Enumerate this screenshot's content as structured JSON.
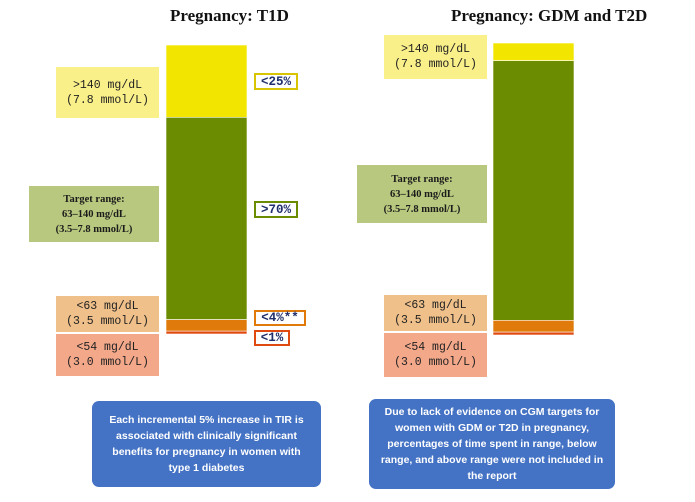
{
  "chart_data": [
    {
      "type": "stacked-bar",
      "title": "Pregnancy: T1D",
      "segments_bottom_to_top": [
        {
          "name": "<54 mg/dL",
          "color": "#e04a10",
          "value": 1
        },
        {
          "name": "<63 mg/dL",
          "color": "#e07a0a",
          "value": 4
        },
        {
          "name": "Target range",
          "color": "#6b8c00",
          "value": 70
        },
        {
          "name": ">140 mg/dL",
          "color": "#f2e600",
          "value": 25
        }
      ],
      "labels": {
        "above": [
          ">140 mg/dL",
          "(7.8 mmol/L)"
        ],
        "target": [
          "Target range:",
          "63–140 mg/dL",
          "(3.5–7.8 mmol/L)"
        ],
        "low": [
          "<63 mg/dL",
          "(3.5 mmol/L)"
        ],
        "very_low": [
          "<54 mg/dL",
          "(3.0 mmol/L)"
        ]
      },
      "targets": [
        {
          "text": "<25%",
          "border": "#d8c400"
        },
        {
          "text": ">70%",
          "border": "#6b8c00"
        },
        {
          "text": "<4%**",
          "border": "#e07a0a"
        },
        {
          "text": "<1%",
          "border": "#e04a10"
        }
      ],
      "note": [
        "Each incremental 5% increase in TIR is",
        "associated with clinically significant",
        "benefits for pregnancy in women with",
        "type 1 diabetes"
      ]
    },
    {
      "type": "stacked-bar",
      "title": "Pregnancy: GDM and T2D",
      "segments_bottom_to_top": [
        {
          "name": "<54 mg/dL",
          "color": "#e04a10",
          "value": 1
        },
        {
          "name": "<63 mg/dL",
          "color": "#e07a0a",
          "value": 4
        },
        {
          "name": "Target range",
          "color": "#6b8c00",
          "value": 88
        },
        {
          "name": ">140 mg/dL",
          "color": "#f2e600",
          "value": 6
        }
      ],
      "labels": {
        "above": [
          ">140 mg/dL",
          "(7.8 mmol/L)"
        ],
        "target": [
          "Target range:",
          "63–140 mg/dL",
          "(3.5–7.8 mmol/L)"
        ],
        "low": [
          "<63 mg/dL",
          "(3.5 mmol/L)"
        ],
        "very_low": [
          "<54 mg/dL",
          "(3.0 mmol/L)"
        ]
      },
      "targets": [],
      "note": [
        "Due to lack of evidence on CGM targets for",
        "women with GDM or T2D in pregnancy,",
        "percentages of time spent in range, below",
        "range, and above range were not included in",
        "the report"
      ]
    }
  ]
}
